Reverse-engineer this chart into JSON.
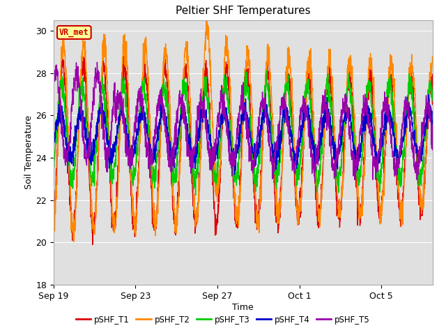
{
  "title": "Peltier SHF Temperatures",
  "xlabel": "Time",
  "ylabel": "Soil Temperature",
  "ylim": [
    18,
    30.5
  ],
  "yticks": [
    18,
    20,
    22,
    24,
    26,
    28,
    30
  ],
  "xtick_labels": [
    "Sep 19",
    "Sep 23",
    "Sep 27",
    "Oct 1",
    "Oct 5"
  ],
  "xtick_positions": [
    0,
    4,
    8,
    12,
    16
  ],
  "series_labels": [
    "pSHF_T1",
    "pSHF_T2",
    "pSHF_T3",
    "pSHF_T4",
    "pSHF_T5"
  ],
  "series_colors": [
    "#dd0000",
    "#ff8800",
    "#00cc00",
    "#0000cc",
    "#9900aa"
  ],
  "annotation_text": "VR_met",
  "annotation_bg": "#ffff99",
  "annotation_border": "#cc0000",
  "bg_color": "#e0e0e0",
  "fig_bg": "#ffffff",
  "grid_color": "#ffffff",
  "linewidth": 1.0,
  "total_days": 18.5,
  "n_points": 2000
}
